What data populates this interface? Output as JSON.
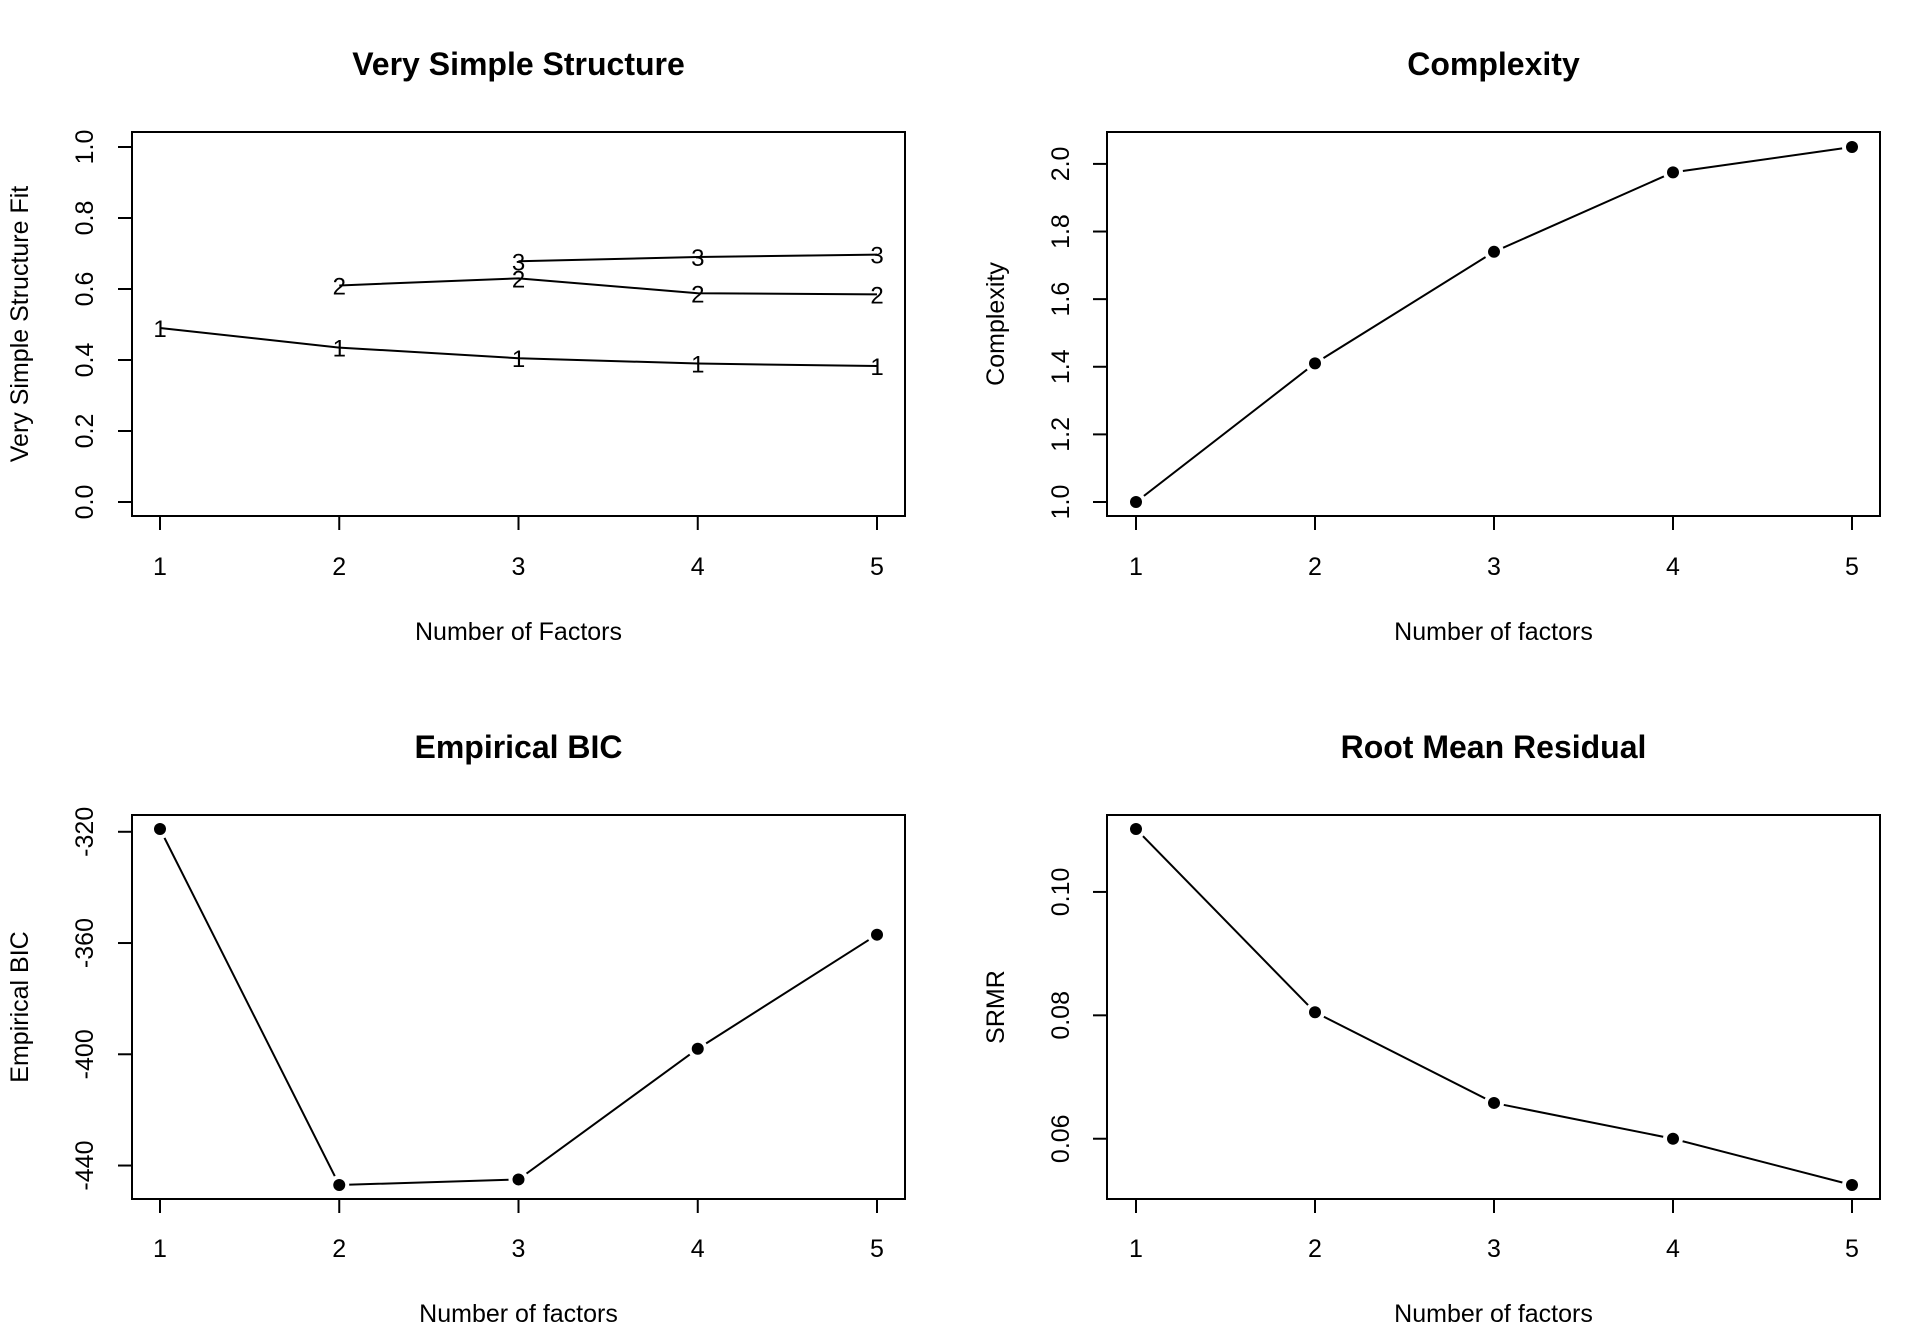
{
  "chart_data": [
    {
      "type": "line",
      "title": "Very Simple Structure",
      "xlabel": "Number of Factors",
      "ylabel": "Very Simple Structure Fit",
      "xlim": [
        1,
        5
      ],
      "ylim": [
        0,
        1
      ],
      "xticks": [
        "1",
        "2",
        "3",
        "4",
        "5"
      ],
      "yticks": [
        "0.0",
        "0.2",
        "0.4",
        "0.6",
        "0.8",
        "1.0"
      ],
      "marker": "label",
      "grid": false,
      "series": [
        {
          "label": "1",
          "x": [
            1,
            2,
            3,
            4,
            5
          ],
          "values": [
            0.49,
            0.435,
            0.405,
            0.39,
            0.383
          ]
        },
        {
          "label": "2",
          "x": [
            2,
            3,
            4,
            5
          ],
          "values": [
            0.61,
            0.63,
            0.588,
            0.585
          ]
        },
        {
          "label": "3",
          "x": [
            3,
            4,
            5
          ],
          "values": [
            0.678,
            0.69,
            0.697
          ]
        }
      ]
    },
    {
      "type": "line",
      "title": "Complexity",
      "xlabel": "Number of factors",
      "ylabel": "Complexity",
      "xlim": [
        1,
        5
      ],
      "ylim": [
        1.0,
        2.05
      ],
      "xticks": [
        "1",
        "2",
        "3",
        "4",
        "5"
      ],
      "yticks": [
        "1.0",
        "1.2",
        "1.4",
        "1.6",
        "1.8",
        "2.0"
      ],
      "marker": "dot",
      "grid": false,
      "series": [
        {
          "x": [
            1,
            2,
            3,
            4,
            5
          ],
          "values": [
            1.0,
            1.41,
            1.74,
            1.975,
            2.05
          ]
        }
      ]
    },
    {
      "type": "line",
      "title": "Empirical BIC",
      "xlabel": "Number of factors",
      "ylabel": "Empirical BIC",
      "xlim": [
        1,
        5
      ],
      "ylim": [
        -447,
        -319
      ],
      "xticks": [
        "1",
        "2",
        "3",
        "4",
        "5"
      ],
      "yticks": [
        "-440",
        "-400",
        "-360",
        "-320"
      ],
      "marker": "dot",
      "grid": false,
      "series": [
        {
          "x": [
            1,
            2,
            3,
            4,
            5
          ],
          "values": [
            -319,
            -447,
            -445,
            -398,
            -357
          ]
        }
      ]
    },
    {
      "type": "line",
      "title": "Root Mean Residual",
      "xlabel": "Number of factors",
      "ylabel": "SRMR",
      "xlim": [
        1,
        5
      ],
      "ylim": [
        0.0525,
        0.1102
      ],
      "xticks": [
        "1",
        "2",
        "3",
        "4",
        "5"
      ],
      "yticks": [
        "0.06",
        "0.08",
        "0.10"
      ],
      "marker": "dot",
      "grid": false,
      "series": [
        {
          "x": [
            1,
            2,
            3,
            4,
            5
          ],
          "values": [
            0.1102,
            0.0805,
            0.0658,
            0.06,
            0.0525
          ]
        }
      ]
    }
  ]
}
